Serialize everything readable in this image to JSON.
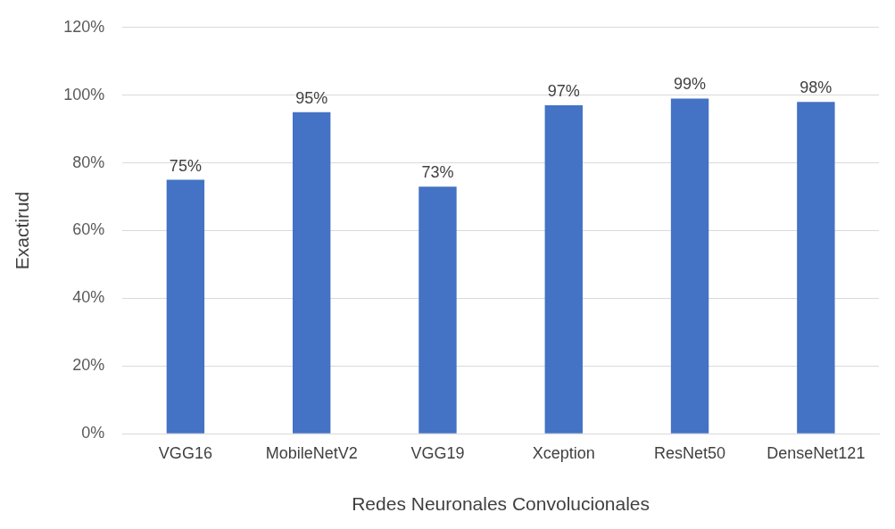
{
  "chart_data": {
    "type": "bar",
    "xlabel": "Redes Neuronales Convolucionales",
    "ylabel": "Exactirud",
    "categories": [
      "VGG16",
      "MobileNetV2",
      "VGG19",
      "Xception",
      "ResNet50",
      "DenseNet121"
    ],
    "values": [
      75,
      95,
      73,
      97,
      99,
      98
    ],
    "value_labels": [
      "75%",
      "95%",
      "73%",
      "97%",
      "99%",
      "98%"
    ],
    "color": "#4472c4",
    "ylim": [
      0,
      120
    ],
    "yticks": [
      {
        "value": 0,
        "label": "0%"
      },
      {
        "value": 20,
        "label": "20%"
      },
      {
        "value": 40,
        "label": "40%"
      },
      {
        "value": 60,
        "label": "60%"
      },
      {
        "value": 80,
        "label": "80%"
      },
      {
        "value": 100,
        "label": "100%"
      },
      {
        "value": 120,
        "label": "120%"
      }
    ],
    "grid": "y",
    "legend": false
  }
}
